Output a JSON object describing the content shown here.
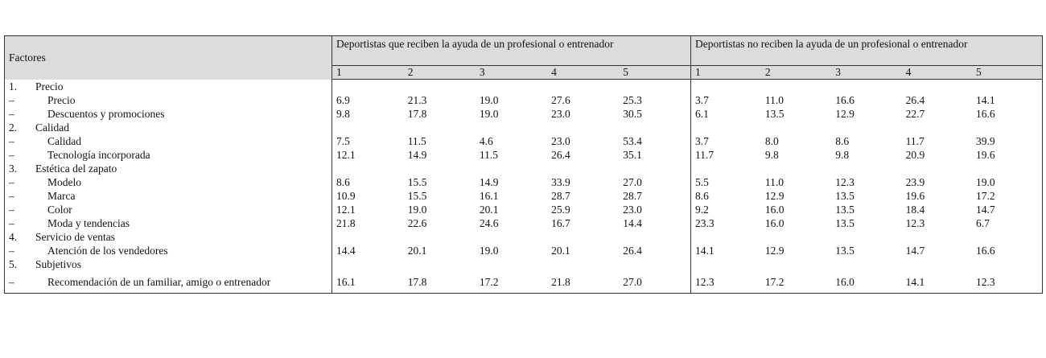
{
  "table": {
    "header": {
      "factor": "Factores",
      "groups": [
        "Deportistas que reciben la ayuda de un profesional o entrenador",
        "Deportistas no reciben la ayuda de un profesional o entrenador"
      ],
      "subcolumns": [
        [
          1,
          2,
          3,
          4,
          5
        ],
        [
          1,
          2,
          3,
          4,
          5
        ]
      ]
    },
    "rows": [
      {
        "marker": "1.",
        "label": "Precio"
      },
      {
        "marker": "–",
        "label": "Precio",
        "values": [
          "6.9",
          "21.3",
          "19.0",
          "27.6",
          "25.3",
          "3.7",
          "11.0",
          "16.6",
          "26.4",
          "14.1"
        ]
      },
      {
        "marker": "–",
        "label": "Descuentos y promociones",
        "values": [
          "9.8",
          "17.8",
          "19.0",
          "23.0",
          "30.5",
          "6.1",
          "13.5",
          "12.9",
          "22.7",
          "16.6"
        ]
      },
      {
        "marker": "2.",
        "label": "Calidad"
      },
      {
        "marker": "–",
        "label": "Calidad",
        "values": [
          "7.5",
          "11.5",
          "4.6",
          "23.0",
          "53.4",
          "3.7",
          "8.0",
          "8.6",
          "11.7",
          "39.9"
        ]
      },
      {
        "marker": "–",
        "label": "Tecnología incorporada",
        "values": [
          "12.1",
          "14.9",
          "11.5",
          "26.4",
          "35.1",
          "11.7",
          "9.8",
          "9.8",
          "20.9",
          "19.6"
        ]
      },
      {
        "marker": "3.",
        "label": "Estética del zapato"
      },
      {
        "marker": "–",
        "label": "Modelo",
        "values": [
          "8.6",
          "15.5",
          "14.9",
          "33.9",
          "27.0",
          "5.5",
          "11.0",
          "12.3",
          "23.9",
          "19.0"
        ]
      },
      {
        "marker": "–",
        "label": "Marca",
        "values": [
          "10.9",
          "15.5",
          "16.1",
          "28.7",
          "28.7",
          "8.6",
          "12.9",
          "13.5",
          "19.6",
          "17.2"
        ]
      },
      {
        "marker": "–",
        "label": "Color",
        "values": [
          "12.1",
          "19.0",
          "20.1",
          "25.9",
          "23.0",
          "9.2",
          "16.0",
          "13.5",
          "18.4",
          "14.7"
        ]
      },
      {
        "marker": "–",
        "label": "Moda y tendencias",
        "values": [
          "21.8",
          "22.6",
          "24.6",
          "16.7",
          "14.4",
          "23.3",
          "16.0",
          "13.5",
          "12.3",
          "6.7"
        ]
      },
      {
        "marker": "4.",
        "label": "Servicio de ventas"
      },
      {
        "marker": "–",
        "label": "Atención de los vendedores",
        "values": [
          "14.4",
          "20.1",
          "19.0",
          "20.1",
          "26.4",
          "14.1",
          "12.9",
          "13.5",
          "14.7",
          "16.6"
        ]
      },
      {
        "marker": "5.",
        "label": "Subjetivos"
      },
      {
        "marker": "–",
        "label": "Recomendación de un familiar, amigo o entrenador",
        "values": [
          "16.1",
          "17.8",
          "17.2",
          "21.8",
          "27.0",
          "12.3",
          "17.2",
          "16.0",
          "14.1",
          "12.3"
        ]
      }
    ]
  }
}
